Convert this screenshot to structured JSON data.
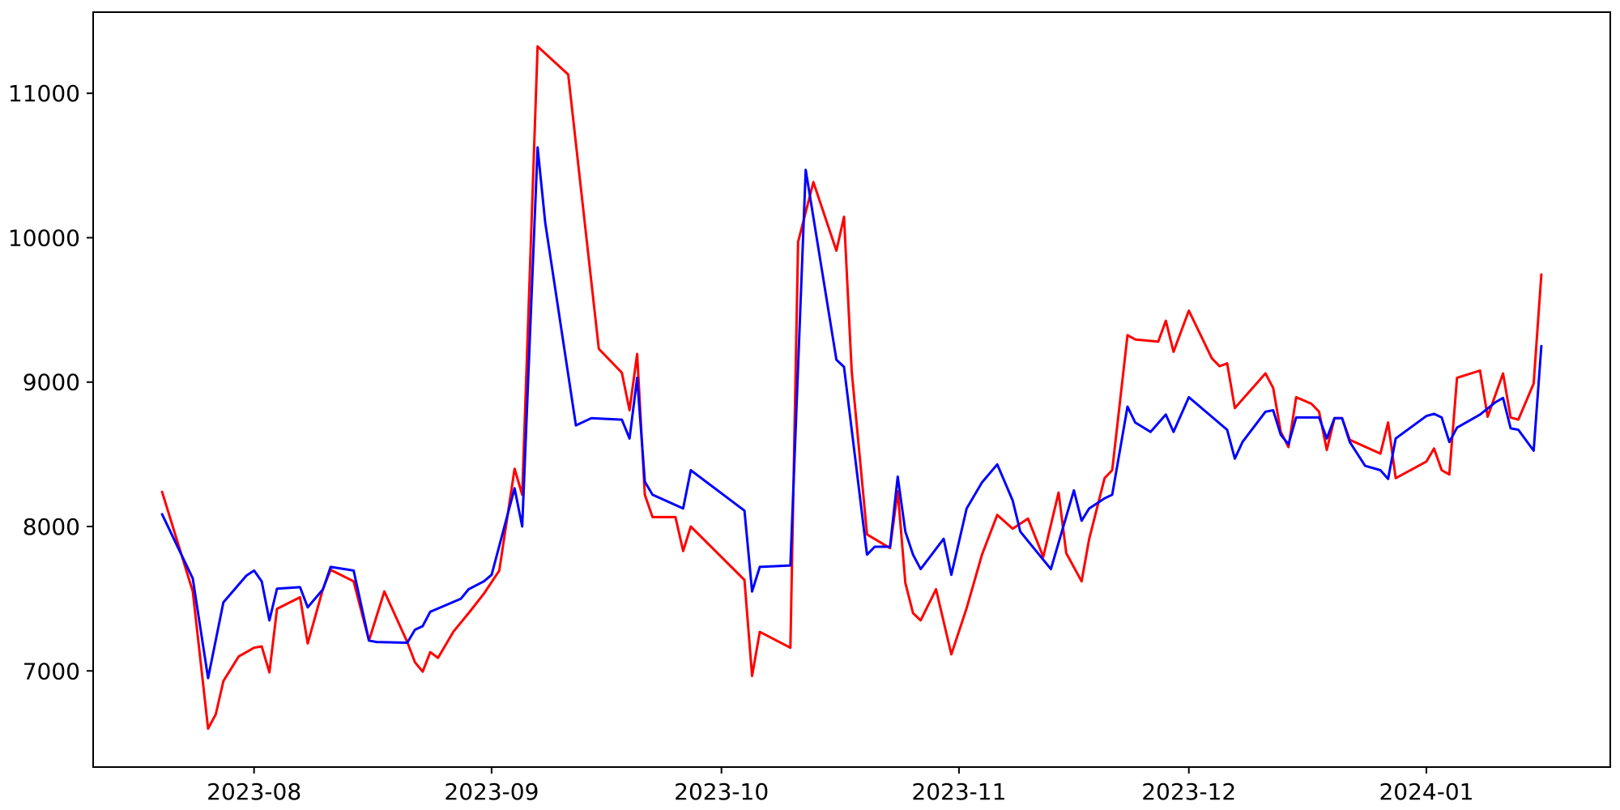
{
  "figure": {
    "background": "#ffffff",
    "frame_color": "#000000"
  },
  "chart_data": {
    "type": "line",
    "title": "",
    "xlabel": "",
    "ylabel": "",
    "grid": false,
    "legend": "none",
    "x_axis": {
      "type": "date",
      "min": "2023-07-11",
      "max": "2024-01-25",
      "ticks": [
        {
          "date": "2023-08-01",
          "label": "2023-08"
        },
        {
          "date": "2023-09-01",
          "label": "2023-09"
        },
        {
          "date": "2023-10-01",
          "label": "2023-10"
        },
        {
          "date": "2023-11-01",
          "label": "2023-11"
        },
        {
          "date": "2023-12-01",
          "label": "2023-12"
        },
        {
          "date": "2024-01-01",
          "label": "2024-01"
        }
      ]
    },
    "y_axis": {
      "min": 6334,
      "max": 11562,
      "ticks": [
        7000,
        8000,
        9000,
        10000,
        11000
      ]
    },
    "series": [
      {
        "name": "red-series",
        "color": "#ff0000",
        "x": [
          "2023-07-20",
          "2023-07-24",
          "2023-07-26",
          "2023-07-27",
          "2023-07-28",
          "2023-07-30",
          "2023-08-01",
          "2023-08-02",
          "2023-08-03",
          "2023-08-04",
          "2023-08-07",
          "2023-08-08",
          "2023-08-10",
          "2023-08-11",
          "2023-08-14",
          "2023-08-16",
          "2023-08-18",
          "2023-08-21",
          "2023-08-22",
          "2023-08-23",
          "2023-08-24",
          "2023-08-25",
          "2023-08-27",
          "2023-08-29",
          "2023-08-31",
          "2023-09-02",
          "2023-09-04",
          "2023-09-05",
          "2023-09-07",
          "2023-09-11",
          "2023-09-15",
          "2023-09-18",
          "2023-09-19",
          "2023-09-20",
          "2023-09-21",
          "2023-09-22",
          "2023-09-25",
          "2023-09-26",
          "2023-09-27",
          "2023-10-04",
          "2023-10-05",
          "2023-10-06",
          "2023-10-10",
          "2023-10-11",
          "2023-10-13",
          "2023-10-16",
          "2023-10-17",
          "2023-10-18",
          "2023-10-20",
          "2023-10-23",
          "2023-10-24",
          "2023-10-25",
          "2023-10-26",
          "2023-10-27",
          "2023-10-29",
          "2023-10-31",
          "2023-11-02",
          "2023-11-04",
          "2023-11-06",
          "2023-11-08",
          "2023-11-10",
          "2023-11-12",
          "2023-11-14",
          "2023-11-15",
          "2023-11-17",
          "2023-11-18",
          "2023-11-20",
          "2023-11-21",
          "2023-11-23",
          "2023-11-24",
          "2023-11-27",
          "2023-11-28",
          "2023-11-29",
          "2023-12-01",
          "2023-12-04",
          "2023-12-05",
          "2023-12-06",
          "2023-12-07",
          "2023-12-08",
          "2023-12-11",
          "2023-12-12",
          "2023-12-13",
          "2023-12-14",
          "2023-12-15",
          "2023-12-17",
          "2023-12-18",
          "2023-12-19",
          "2023-12-20",
          "2023-12-21",
          "2023-12-22",
          "2023-12-26",
          "2023-12-27",
          "2023-12-28",
          "2024-01-01",
          "2024-01-02",
          "2024-01-03",
          "2024-01-04",
          "2024-01-05",
          "2024-01-08",
          "2024-01-09",
          "2024-01-11",
          "2024-01-12",
          "2024-01-13",
          "2024-01-15",
          "2024-01-16"
        ],
        "y": [
          8240,
          7550,
          6600,
          6700,
          6930,
          7100,
          7160,
          7170,
          6990,
          7430,
          7510,
          7190,
          7570,
          7700,
          7620,
          7210,
          7550,
          7200,
          7060,
          6995,
          7130,
          7090,
          7270,
          7400,
          7535,
          7695,
          8400,
          8220,
          11325,
          11130,
          9230,
          9065,
          8805,
          9195,
          8220,
          8065,
          8065,
          7830,
          8000,
          7630,
          6965,
          7270,
          7160,
          9970,
          10385,
          9910,
          10145,
          9075,
          7945,
          7850,
          8245,
          7610,
          7400,
          7350,
          7565,
          7115,
          7435,
          7805,
          8080,
          7985,
          8055,
          7790,
          8235,
          7815,
          7620,
          7915,
          8335,
          8390,
          9325,
          9295,
          9280,
          9425,
          9210,
          9495,
          9165,
          9110,
          9130,
          8820,
          8880,
          9060,
          8960,
          8655,
          8550,
          8895,
          8850,
          8795,
          8530,
          8750,
          8750,
          8600,
          8505,
          8720,
          8335,
          8450,
          8540,
          8390,
          8360,
          9030,
          9080,
          8760,
          9060,
          8755,
          8740,
          8990,
          9745
        ]
      },
      {
        "name": "blue-series",
        "color": "#0000ff",
        "x": [
          "2023-07-20",
          "2023-07-24",
          "2023-07-26",
          "2023-07-28",
          "2023-07-31",
          "2023-08-01",
          "2023-08-02",
          "2023-08-03",
          "2023-08-04",
          "2023-08-07",
          "2023-08-08",
          "2023-08-10",
          "2023-08-11",
          "2023-08-14",
          "2023-08-16",
          "2023-08-17",
          "2023-08-21",
          "2023-08-22",
          "2023-08-23",
          "2023-08-24",
          "2023-08-26",
          "2023-08-28",
          "2023-08-29",
          "2023-08-31",
          "2023-09-01",
          "2023-09-04",
          "2023-09-05",
          "2023-09-07",
          "2023-09-08",
          "2023-09-12",
          "2023-09-14",
          "2023-09-18",
          "2023-09-19",
          "2023-09-20",
          "2023-09-21",
          "2023-09-22",
          "2023-09-26",
          "2023-09-27",
          "2023-10-04",
          "2023-10-05",
          "2023-10-06",
          "2023-10-10",
          "2023-10-12",
          "2023-10-16",
          "2023-10-17",
          "2023-10-20",
          "2023-10-21",
          "2023-10-23",
          "2023-10-24",
          "2023-10-25",
          "2023-10-26",
          "2023-10-27",
          "2023-10-30",
          "2023-10-31",
          "2023-11-02",
          "2023-11-04",
          "2023-11-06",
          "2023-11-08",
          "2023-11-09",
          "2023-11-13",
          "2023-11-16",
          "2023-11-17",
          "2023-11-18",
          "2023-11-20",
          "2023-11-21",
          "2023-11-23",
          "2023-11-24",
          "2023-11-26",
          "2023-11-28",
          "2023-11-29",
          "2023-12-01",
          "2023-12-06",
          "2023-12-07",
          "2023-12-08",
          "2023-12-11",
          "2023-12-12",
          "2023-12-13",
          "2023-12-14",
          "2023-12-15",
          "2023-12-18",
          "2023-12-19",
          "2023-12-20",
          "2023-12-21",
          "2023-12-22",
          "2023-12-24",
          "2023-12-26",
          "2023-12-27",
          "2023-12-28",
          "2024-01-01",
          "2024-01-02",
          "2024-01-03",
          "2024-01-04",
          "2024-01-05",
          "2024-01-08",
          "2024-01-10",
          "2024-01-11",
          "2024-01-12",
          "2024-01-13",
          "2024-01-15",
          "2024-01-16"
        ],
        "y": [
          8085,
          7640,
          6950,
          7475,
          7660,
          7695,
          7620,
          7350,
          7570,
          7580,
          7440,
          7565,
          7720,
          7695,
          7210,
          7200,
          7195,
          7285,
          7310,
          7410,
          7455,
          7500,
          7565,
          7620,
          7665,
          8265,
          8000,
          10625,
          10105,
          8700,
          8750,
          8740,
          8610,
          9030,
          8310,
          8220,
          8125,
          8390,
          8110,
          7550,
          7720,
          7730,
          10470,
          9155,
          9105,
          7805,
          7860,
          7860,
          8345,
          7965,
          7805,
          7705,
          7915,
          7665,
          8125,
          8305,
          8430,
          8180,
          7965,
          7705,
          8250,
          8040,
          8125,
          8195,
          8220,
          8830,
          8720,
          8655,
          8775,
          8655,
          8895,
          8670,
          8470,
          8585,
          8795,
          8805,
          8635,
          8570,
          8755,
          8755,
          8610,
          8750,
          8750,
          8585,
          8420,
          8390,
          8330,
          8610,
          8765,
          8780,
          8755,
          8585,
          8685,
          8775,
          8860,
          8890,
          8680,
          8670,
          8525,
          9250
        ]
      }
    ]
  }
}
